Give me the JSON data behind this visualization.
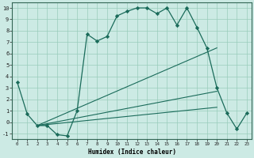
{
  "xlabel": "Humidex (Indice chaleur)",
  "xlim": [
    -0.5,
    23.5
  ],
  "ylim": [
    -1.5,
    10.5
  ],
  "xticks": [
    0,
    1,
    2,
    3,
    4,
    5,
    6,
    7,
    8,
    9,
    10,
    11,
    12,
    13,
    14,
    15,
    16,
    17,
    18,
    19,
    20,
    21,
    22,
    23
  ],
  "yticks": [
    -1,
    0,
    1,
    2,
    3,
    4,
    5,
    6,
    7,
    8,
    9,
    10
  ],
  "bg_color": "#cceae4",
  "grid_color": "#99ccbb",
  "line_color": "#1a6b5a",
  "main_line": {
    "x": [
      0,
      1,
      2,
      3,
      4,
      5,
      6,
      7,
      8,
      9,
      10,
      11,
      12,
      13,
      14,
      15,
      16,
      17,
      18,
      19,
      20,
      21,
      22,
      23
    ],
    "y": [
      3.5,
      0.7,
      -0.3,
      -0.3,
      -1.1,
      -1.2,
      1.0,
      7.7,
      7.1,
      7.5,
      9.3,
      9.7,
      10.0,
      10.0,
      9.5,
      10.0,
      8.5,
      10.0,
      8.3,
      6.5,
      3.0,
      0.8,
      -0.6,
      0.8
    ]
  },
  "trend_lines": [
    {
      "x": [
        2,
        20
      ],
      "y": [
        -0.3,
        6.5
      ]
    },
    {
      "x": [
        2,
        20
      ],
      "y": [
        -0.3,
        2.7
      ]
    },
    {
      "x": [
        2,
        20
      ],
      "y": [
        -0.3,
        1.3
      ]
    }
  ]
}
